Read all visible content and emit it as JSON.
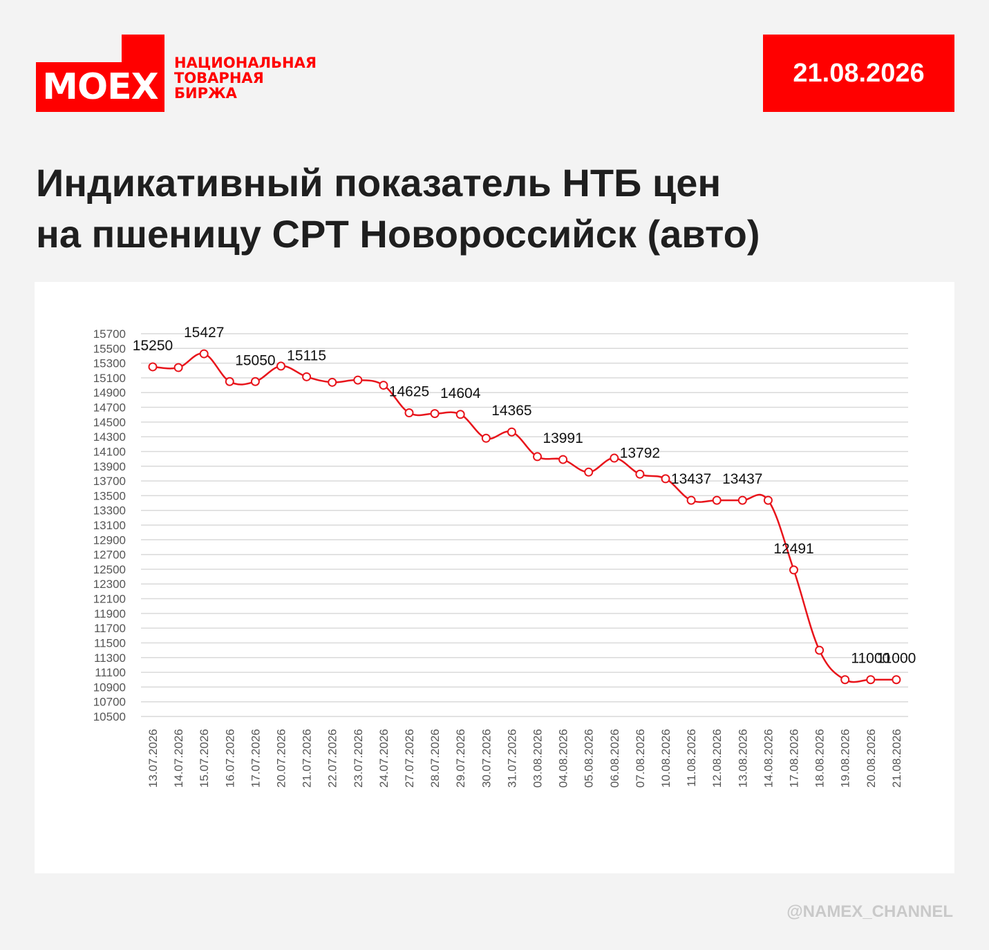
{
  "header": {
    "logo": "MOEX",
    "org_lines": [
      "НАЦИОНАЛЬНАЯ",
      "ТОВАРНАЯ",
      "БИРЖА"
    ],
    "date": "21.08.2026"
  },
  "title_lines": [
    "Индикативный показатель НТБ цен",
    "на пшеницу СРТ Новороссийск (авто)"
  ],
  "footer": "@NAMEX_CHANNEL",
  "colors": {
    "brand": "#ff0000",
    "line": "#e8141b",
    "grid": "#d9d9d9"
  },
  "chart_data": {
    "type": "line",
    "title": "",
    "xlabel": "",
    "ylabel": "",
    "ylim": [
      10500,
      15700
    ],
    "yticks": [
      10500,
      10700,
      10900,
      11100,
      11300,
      11500,
      11700,
      11900,
      12100,
      12300,
      12500,
      12700,
      12900,
      13100,
      13300,
      13500,
      13700,
      13900,
      14100,
      14300,
      14500,
      14700,
      14900,
      15100,
      15300,
      15500,
      15700
    ],
    "grid": true,
    "legend": "none",
    "categories": [
      "13.07.2026",
      "14.07.2026",
      "15.07.2026",
      "16.07.2026",
      "17.07.2026",
      "20.07.2026",
      "21.07.2026",
      "22.07.2026",
      "23.07.2026",
      "24.07.2026",
      "27.07.2026",
      "28.07.2026",
      "29.07.2026",
      "30.07.2026",
      "31.07.2026",
      "03.08.2026",
      "04.08.2026",
      "05.08.2026",
      "06.08.2026",
      "07.08.2026",
      "10.08.2026",
      "11.08.2026",
      "12.08.2026",
      "13.08.2026",
      "14.08.2026",
      "17.08.2026",
      "18.08.2026",
      "19.08.2026",
      "20.08.2026",
      "21.08.2026"
    ],
    "values": [
      15250,
      15240,
      15427,
      15050,
      15050,
      15260,
      15115,
      15040,
      15070,
      15000,
      14625,
      14615,
      14604,
      14280,
      14365,
      14030,
      13991,
      13820,
      14010,
      13792,
      13730,
      13437,
      13437,
      13437,
      13437,
      12491,
      11400,
      11000,
      11000,
      11000
    ],
    "data_labels": [
      {
        "index": 0,
        "text": "15250"
      },
      {
        "index": 2,
        "text": "15427"
      },
      {
        "index": 4,
        "text": "15050"
      },
      {
        "index": 6,
        "text": "15115"
      },
      {
        "index": 10,
        "text": "14625"
      },
      {
        "index": 12,
        "text": "14604"
      },
      {
        "index": 14,
        "text": "14365"
      },
      {
        "index": 16,
        "text": "13991"
      },
      {
        "index": 19,
        "text": "13792"
      },
      {
        "index": 21,
        "text": "13437"
      },
      {
        "index": 23,
        "text": "13437"
      },
      {
        "index": 25,
        "text": "12491"
      },
      {
        "index": 28,
        "text": "11000"
      },
      {
        "index": 29,
        "text": "11000"
      }
    ]
  }
}
